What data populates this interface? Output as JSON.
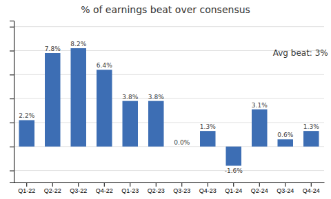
{
  "chart_data": {
    "type": "bar",
    "title": "% of earnings beat over consensus",
    "categories": [
      "Q1-22",
      "Q2-22",
      "Q3-22",
      "Q4-22",
      "Q1-23",
      "Q2-23",
      "Q3-23",
      "Q4-23",
      "Q1-24",
      "Q2-24",
      "Q3-24",
      "Q4-24"
    ],
    "values": [
      2.2,
      7.8,
      8.2,
      6.4,
      3.8,
      3.8,
      0.0,
      1.3,
      -1.6,
      3.1,
      0.6,
      1.3
    ],
    "value_labels": [
      "2.2%",
      "7.8%",
      "8.2%",
      "6.4%",
      "3.8%",
      "3.8%",
      "0.0%",
      "1.3%",
      "-1.6%",
      "3.1%",
      "0.6%",
      "1.3%"
    ],
    "data_labels": true,
    "color": "#3d6eb4",
    "ylim": [
      -3.0,
      10.5
    ],
    "yticks": [
      -2,
      0,
      2,
      4,
      6,
      8,
      10
    ],
    "grid": true,
    "tick_labels": "x",
    "annotation": "Avg beat: 3%"
  }
}
